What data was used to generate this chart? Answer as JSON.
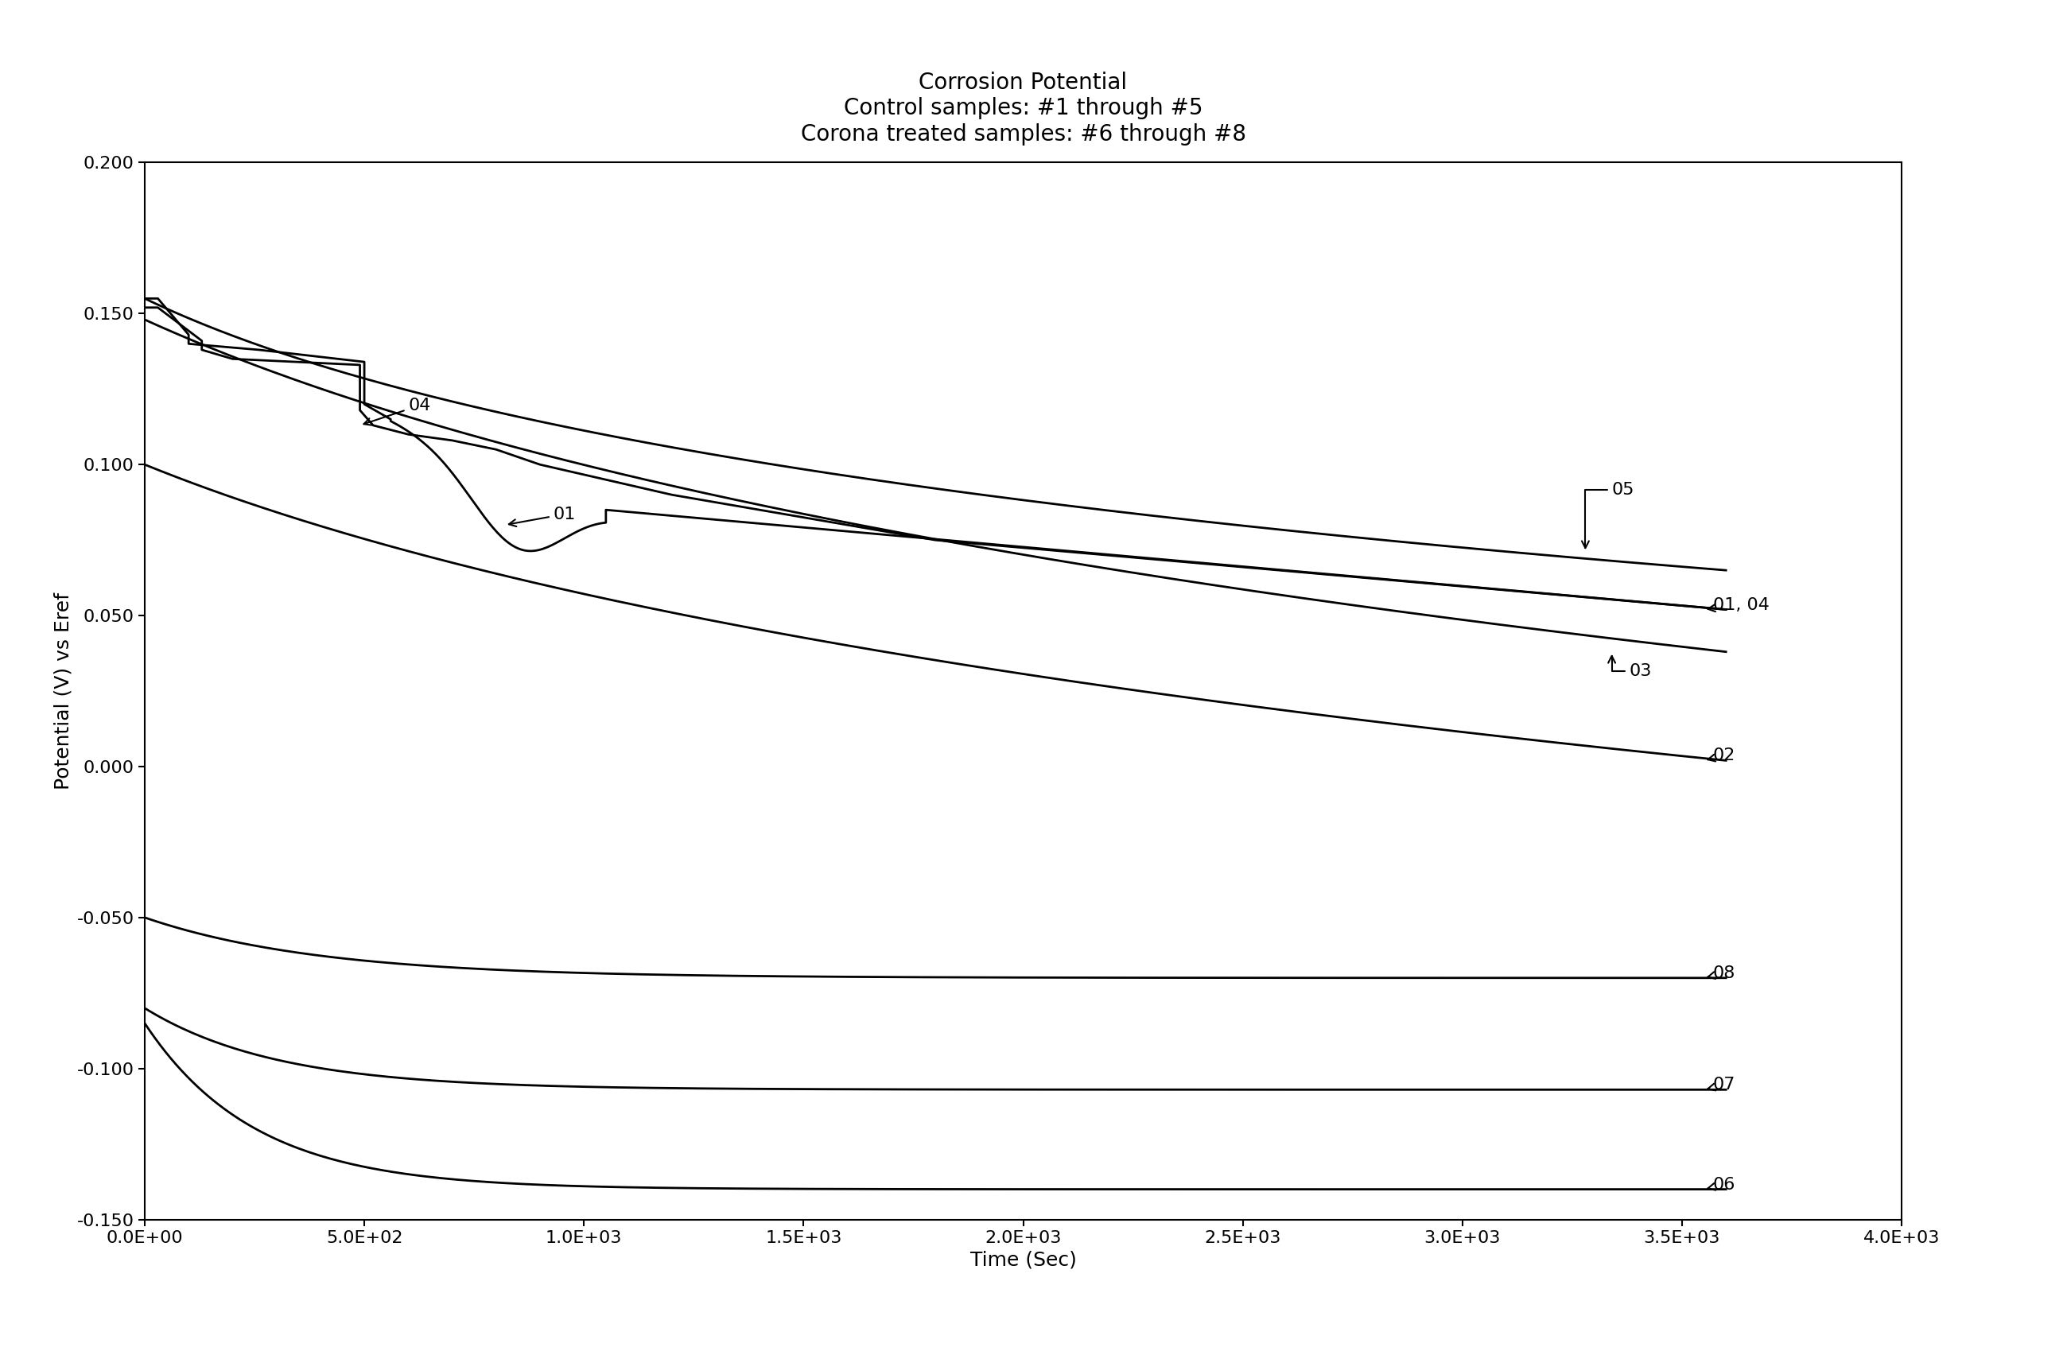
{
  "title": "Corrosion Potential\nControl samples: #1 through #5\nCorona treated samples: #6 through #8",
  "xlabel": "Time (Sec)",
  "ylabel": "Potential (V) vs Eref",
  "xlim": [
    0,
    4000
  ],
  "ylim": [
    -0.15,
    0.2
  ],
  "xticks": [
    0,
    500,
    1000,
    1500,
    2000,
    2500,
    3000,
    3500,
    4000
  ],
  "xtick_labels": [
    "0.0E+00",
    "5.0E+02",
    "1.0E+03",
    "1.5E+03",
    "2.0E+03",
    "2.5E+03",
    "3.0E+03",
    "3.5E+03",
    "4.0E+03"
  ],
  "yticks": [
    -0.15,
    -0.1,
    -0.05,
    0.0,
    0.05,
    0.1,
    0.15,
    0.2
  ],
  "ytick_labels": [
    "-0.150",
    "-0.100",
    "-0.050",
    "0.000",
    "0.050",
    "0.100",
    "0.150",
    "0.200"
  ],
  "background_color": "#ffffff",
  "line_color": "#000000",
  "line_width": 2.0,
  "title_fontsize": 20,
  "axis_fontsize": 18,
  "tick_fontsize": 16,
  "label_fontsize": 16
}
